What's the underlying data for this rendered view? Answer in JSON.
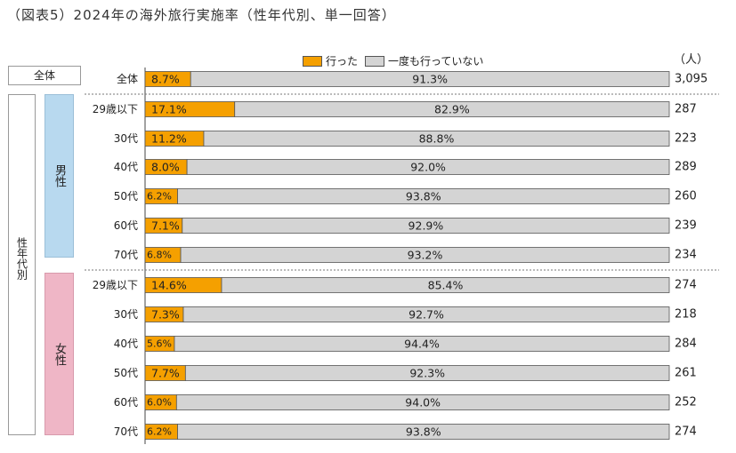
{
  "title": "（図表5）2024年の海外旅行実施率（性年代別、単一回答）",
  "unit": "（人）",
  "legend": {
    "went": "行った",
    "never": "一度も行っていない"
  },
  "groups": {
    "all": "全体",
    "by_gender_age": "性年代別",
    "male": "男性",
    "female": "女性"
  },
  "colors": {
    "went": "#f5a000",
    "never": "#d4d4d4",
    "male": "#b8d9ef",
    "female": "#efb6c6"
  },
  "chart_data": {
    "type": "bar",
    "stacked": true,
    "orientation": "horizontal",
    "title": "（図表5）2024年の海外旅行実施率（性年代別、単一回答）",
    "categories": [
      "全体",
      "29歳以下",
      "30代",
      "40代",
      "50代",
      "60代",
      "70代",
      "29歳以下",
      "30代",
      "40代",
      "50代",
      "60代",
      "70代"
    ],
    "series": [
      {
        "name": "行った",
        "values": [
          8.7,
          17.1,
          11.2,
          8.0,
          6.2,
          7.1,
          6.8,
          14.6,
          7.3,
          5.6,
          7.7,
          6.0,
          6.2
        ]
      },
      {
        "name": "一度も行っていない",
        "values": [
          91.3,
          82.9,
          88.8,
          92.0,
          93.8,
          92.9,
          93.2,
          85.4,
          92.7,
          94.4,
          92.3,
          94.0,
          93.8
        ]
      }
    ],
    "n": [
      "3,095",
      "287",
      "223",
      "289",
      "260",
      "239",
      "234",
      "274",
      "218",
      "284",
      "261",
      "252",
      "274"
    ],
    "xlim": [
      0,
      100
    ],
    "legend_position": "top"
  }
}
